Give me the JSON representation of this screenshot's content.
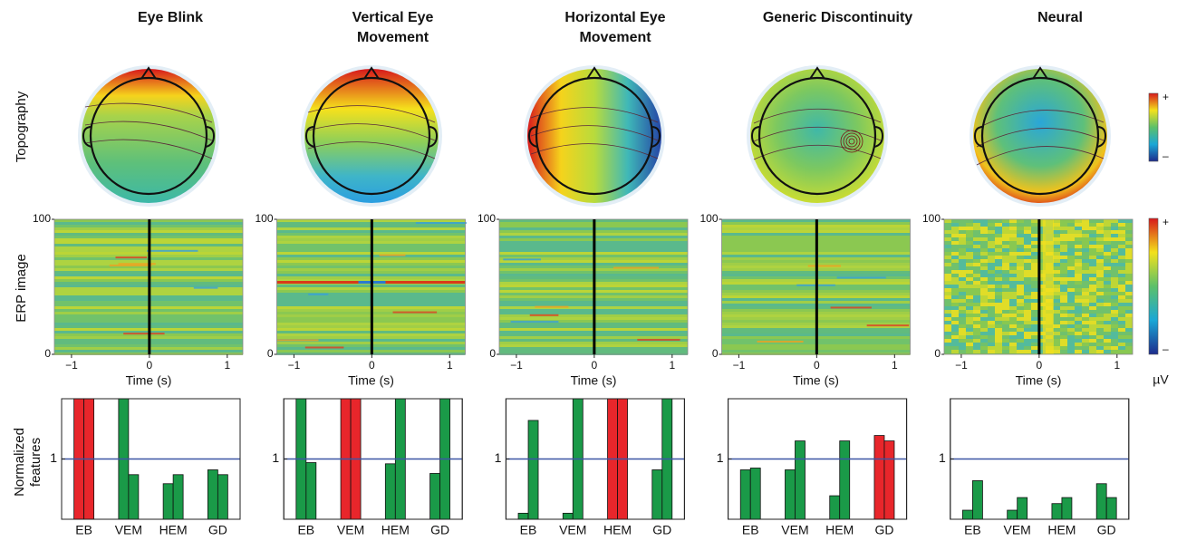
{
  "column_titles": [
    [
      "Eye Blink"
    ],
    [
      "Vertical Eye",
      "Movement"
    ],
    [
      "Horizontal Eye",
      "Movement"
    ],
    [
      "Generic Discontinuity"
    ],
    [
      "Neural"
    ]
  ],
  "row_labels": {
    "topography": "Topography",
    "erp": "ERP image",
    "features": [
      "Normalized",
      "features"
    ]
  },
  "colorbars": [
    {
      "max_label": "+",
      "min_label": "–"
    },
    {
      "max_label": "+",
      "min_label": "–"
    }
  ],
  "unit": "µV",
  "chart_data": [
    {
      "type": "image",
      "xlabel": "Time (s)",
      "xlim": [
        -1.22,
        1.2
      ],
      "xticks": [
        {
          "value": -1,
          "label": "−1"
        },
        0,
        1
      ],
      "ylim": [
        0,
        100
      ],
      "yticks": [
        0,
        100
      ],
      "texture": "stripes"
    },
    {
      "type": "image",
      "xlabel": "Time (s)",
      "xlim": [
        -1.22,
        1.2
      ],
      "xticks": [
        {
          "value": -1,
          "label": "−1"
        },
        0,
        1
      ],
      "ylim": [
        0,
        100
      ],
      "yticks": [
        0,
        100
      ],
      "texture": "stripes"
    },
    {
      "type": "image",
      "xlabel": "Time (s)",
      "xlim": [
        -1.22,
        1.2
      ],
      "xticks": [
        {
          "value": -1,
          "label": "−1"
        },
        0,
        1
      ],
      "ylim": [
        0,
        100
      ],
      "yticks": [
        0,
        100
      ],
      "texture": "stripes"
    },
    {
      "type": "image",
      "xlabel": "Time (s)",
      "xlim": [
        -1.22,
        1.2
      ],
      "xticks": [
        {
          "value": -1,
          "label": "−1"
        },
        0,
        1
      ],
      "ylim": [
        0,
        100
      ],
      "yticks": [
        0,
        100
      ],
      "texture": "stripes"
    },
    {
      "type": "image",
      "xlabel": "Time (s)",
      "xlim": [
        -1.22,
        1.2
      ],
      "xticks": [
        {
          "value": -1,
          "label": "−1"
        },
        0,
        1
      ],
      "ylim": [
        0,
        100
      ],
      "yticks": [
        0,
        100
      ],
      "texture": "mottled"
    },
    {
      "type": "bar",
      "categories": [
        "EB",
        "VEM",
        "HEM",
        "GD"
      ],
      "values": [
        [
          2.0,
          2.0
        ],
        [
          2.0,
          0.74
        ],
        [
          0.59,
          0.74
        ],
        [
          0.82,
          0.74
        ]
      ],
      "colors": [
        "#e8262b",
        "#1a9a48",
        "#1a9a48",
        "#1a9a48"
      ],
      "ylim": [
        0,
        2.0
      ],
      "yticks": [
        1
      ],
      "hline": 1,
      "hline_color": "#3c55a5"
    },
    {
      "type": "bar",
      "categories": [
        "EB",
        "VEM",
        "HEM",
        "GD"
      ],
      "values": [
        [
          2.0,
          0.94
        ],
        [
          2.0,
          2.0
        ],
        [
          0.92,
          2.0
        ],
        [
          0.76,
          2.0
        ]
      ],
      "colors": [
        "#1a9a48",
        "#e8262b",
        "#1a9a48",
        "#1a9a48"
      ],
      "ylim": [
        0,
        2.0
      ],
      "yticks": [
        1
      ],
      "hline": 1,
      "hline_color": "#3c55a5"
    },
    {
      "type": "bar",
      "categories": [
        "EB",
        "VEM",
        "HEM",
        "GD"
      ],
      "values": [
        [
          0.1,
          1.64
        ],
        [
          0.1,
          2.0
        ],
        [
          2.0,
          2.0
        ],
        [
          0.82,
          2.0
        ]
      ],
      "colors": [
        "#1a9a48",
        "#1a9a48",
        "#e8262b",
        "#1a9a48"
      ],
      "ylim": [
        0,
        2.0
      ],
      "yticks": [
        1
      ],
      "hline": 1,
      "hline_color": "#3c55a5"
    },
    {
      "type": "bar",
      "categories": [
        "EB",
        "VEM",
        "HEM",
        "GD"
      ],
      "values": [
        [
          0.82,
          0.85
        ],
        [
          0.82,
          1.3
        ],
        [
          0.39,
          1.3
        ],
        [
          1.39,
          1.3
        ]
      ],
      "colors": [
        "#1a9a48",
        "#1a9a48",
        "#1a9a48",
        "#e8262b"
      ],
      "ylim": [
        0,
        2.0
      ],
      "yticks": [
        1
      ],
      "hline": 1,
      "hline_color": "#3c55a5"
    },
    {
      "type": "bar",
      "categories": [
        "EB",
        "VEM",
        "HEM",
        "GD"
      ],
      "values": [
        [
          0.15,
          0.64
        ],
        [
          0.15,
          0.36
        ],
        [
          0.26,
          0.36
        ],
        [
          0.59,
          0.36
        ]
      ],
      "colors": [
        "#1a9a48",
        "#1a9a48",
        "#1a9a48",
        "#1a9a48"
      ],
      "ylim": [
        0,
        2.0
      ],
      "yticks": [
        1
      ],
      "hline": 1,
      "hline_color": "#3c55a5"
    }
  ]
}
